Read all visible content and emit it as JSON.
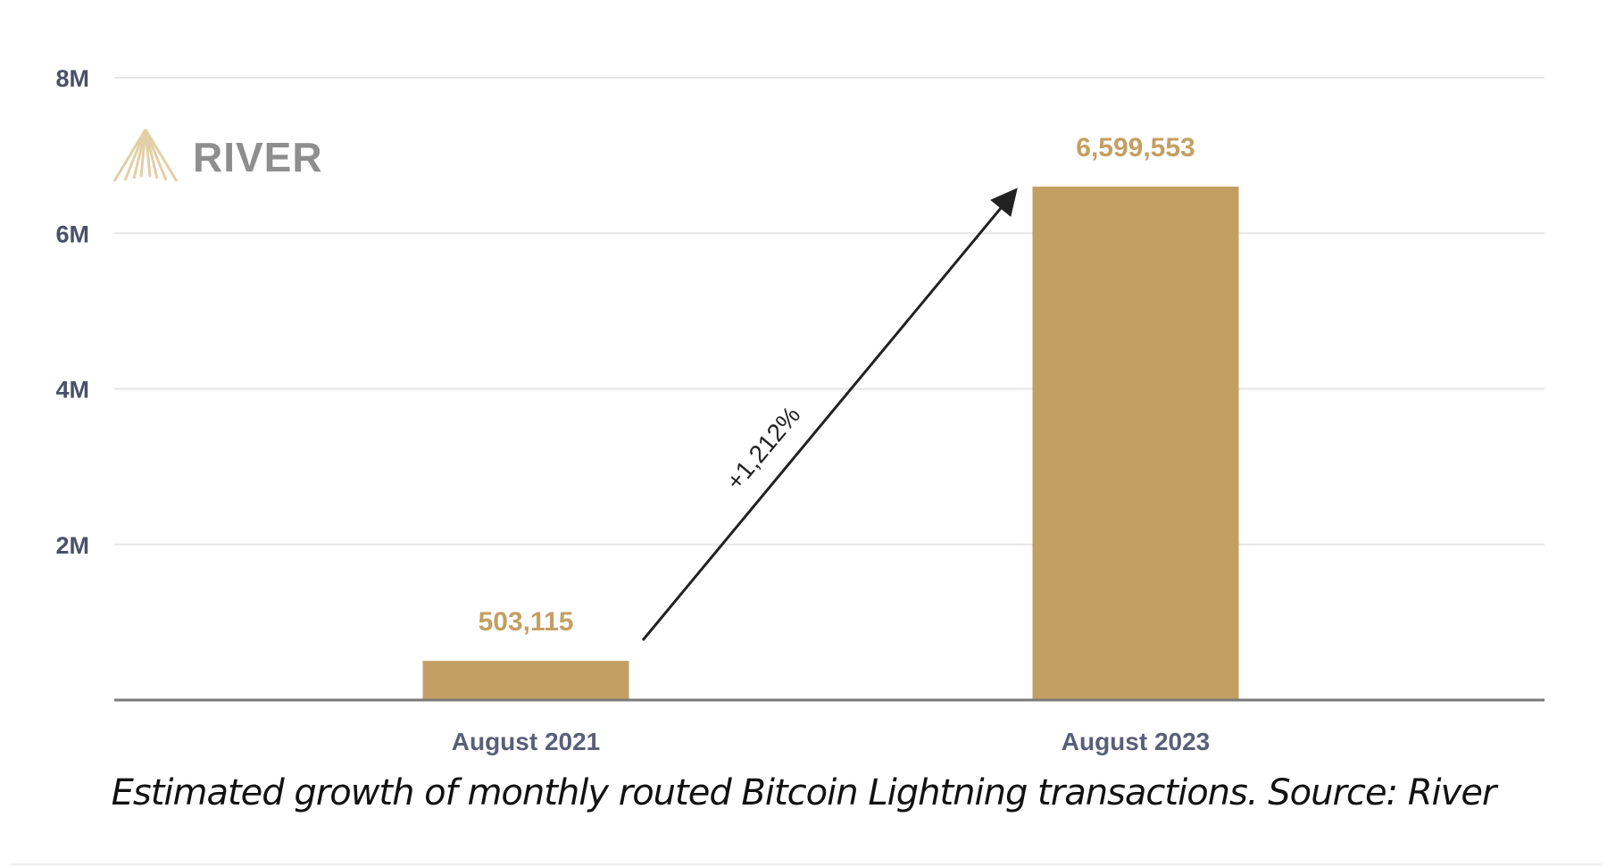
{
  "chart_data": {
    "type": "bar",
    "categories": [
      "August 2021",
      "August 2023"
    ],
    "values": [
      503115,
      6599553
    ],
    "value_labels": [
      "503,115",
      "6,599,553"
    ],
    "ylim": [
      0,
      8000000
    ],
    "yticks": [
      2000000,
      4000000,
      6000000,
      8000000
    ],
    "ytick_labels": [
      "2M",
      "4M",
      "6M",
      "8M"
    ],
    "grid": true,
    "bar_color": "#c49f63",
    "annotation": "+1,212%",
    "logo": "RIVER",
    "caption": "Estimated growth of monthly routed Bitcoin Lightning transactions. Source: River"
  }
}
